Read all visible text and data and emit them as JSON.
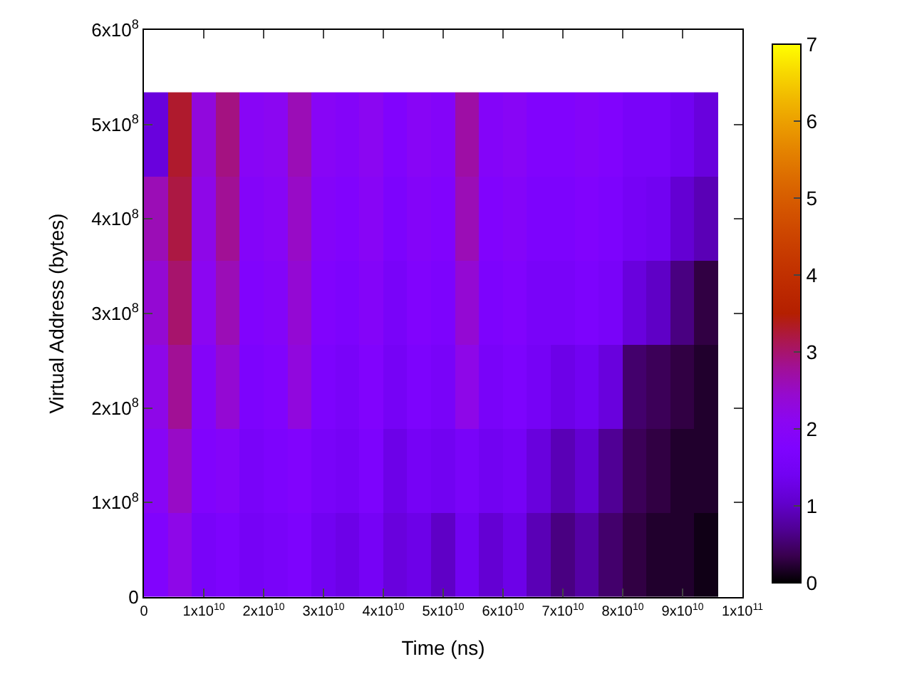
{
  "chart_data": {
    "type": "heatmap",
    "xlabel": "Time (ns)",
    "ylabel": "Virtual Address (bytes)",
    "x": [
      2000000000.0,
      6000000000.0,
      10000000000.0,
      14000000000.0,
      18000000000.0,
      22000000000.0,
      26000000000.0,
      30000000000.0,
      34000000000.0,
      38000000000.0,
      42000000000.0,
      46000000000.0,
      50000000000.0,
      54000000000.0,
      58000000000.0,
      62000000000.0,
      66000000000.0,
      70000000000.0,
      74000000000.0,
      78000000000.0,
      82000000000.0,
      86000000000.0,
      90000000000.0,
      94000000000.0
    ],
    "y": [
      44500000.0,
      133500000.0,
      222500000.0,
      311500000.0,
      400500000.0,
      489500000.0
    ],
    "cells": [
      [
        1.8,
        2.2,
        1.6,
        1.7,
        1.5,
        1.6,
        1.7,
        1.4,
        1.3,
        1.5,
        1.2,
        1.3,
        1.0,
        1.4,
        1.1,
        1.3,
        0.9,
        0.6,
        0.8,
        0.5,
        0.3,
        0.2,
        0.2,
        0.1
      ],
      [
        2.0,
        2.5,
        1.8,
        1.9,
        1.6,
        1.7,
        1.8,
        1.6,
        1.5,
        1.7,
        1.3,
        1.5,
        1.4,
        1.6,
        1.4,
        1.5,
        1.2,
        0.9,
        1.1,
        0.7,
        0.4,
        0.3,
        0.2,
        0.2
      ],
      [
        2.2,
        2.8,
        1.9,
        2.4,
        1.7,
        1.8,
        2.3,
        1.7,
        1.6,
        1.8,
        1.5,
        1.7,
        1.6,
        2.2,
        1.6,
        1.7,
        1.5,
        1.3,
        1.4,
        1.2,
        0.5,
        0.4,
        0.3,
        0.2
      ],
      [
        2.4,
        3.0,
        2.1,
        2.6,
        1.8,
        1.9,
        2.4,
        1.8,
        1.7,
        1.9,
        1.6,
        1.8,
        1.7,
        2.4,
        1.7,
        1.8,
        1.6,
        1.6,
        1.7,
        1.6,
        1.2,
        1.0,
        0.6,
        0.3
      ],
      [
        2.6,
        3.2,
        2.2,
        2.8,
        1.9,
        2.0,
        2.5,
        1.9,
        1.8,
        2.0,
        1.7,
        1.9,
        1.8,
        2.6,
        1.8,
        1.9,
        1.7,
        1.7,
        1.8,
        1.7,
        1.5,
        1.4,
        1.1,
        0.9
      ],
      [
        1.2,
        3.3,
        2.3,
        2.9,
        2.0,
        2.1,
        2.6,
        2.0,
        1.9,
        2.1,
        1.8,
        2.0,
        1.9,
        2.7,
        1.9,
        2.0,
        1.8,
        1.8,
        1.9,
        1.8,
        1.6,
        1.6,
        1.4,
        1.2
      ]
    ],
    "xlim": [
      0,
      100000000000.0
    ],
    "xticks": [
      0,
      {
        "value": 10000000000.0,
        "label": "1x10$^{10}$"
      },
      {
        "value": 20000000000.0,
        "label": "2x10$^{10}$"
      },
      {
        "value": 30000000000.0,
        "label": "3x10$^{10}$"
      },
      {
        "value": 40000000000.0,
        "label": "4x10$^{10}$"
      },
      {
        "value": 50000000000.0,
        "label": "5x10$^{10}$"
      },
      {
        "value": 60000000000.0,
        "label": "6x10$^{10}$"
      },
      {
        "value": 70000000000.0,
        "label": "7x10$^{10}$"
      },
      {
        "value": 80000000000.0,
        "label": "8x10$^{10}$"
      },
      {
        "value": 90000000000.0,
        "label": "9x10$^{10}$"
      },
      {
        "value": 100000000000.0,
        "label": "1x10$^{11}$"
      }
    ],
    "ylim": [
      0,
      600000000.0
    ],
    "yticks": [
      0,
      {
        "value": 100000000.0,
        "label": "1x10$^{8}$"
      },
      {
        "value": 200000000.0,
        "label": "2x10$^{8}$"
      },
      {
        "value": 300000000.0,
        "label": "3x10$^{8}$"
      },
      {
        "value": 400000000.0,
        "label": "4x10$^{8}$"
      },
      {
        "value": 500000000.0,
        "label": "5x10$^{8}$"
      },
      {
        "value": 600000000.0,
        "label": "6x10$^{8}$"
      }
    ],
    "clim": [
      0,
      7
    ],
    "cticks": [
      0,
      1,
      2,
      3,
      4,
      5,
      6,
      7
    ]
  }
}
